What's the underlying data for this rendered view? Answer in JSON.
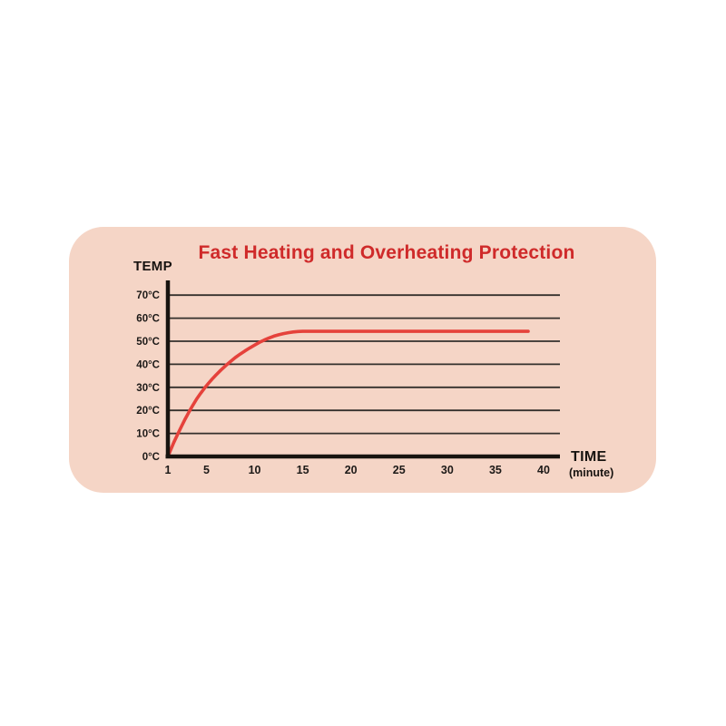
{
  "page": {
    "background": "#ffffff"
  },
  "colors": {
    "card_background": "#f5d5c6",
    "title": "#cf2a2a",
    "curve": "#e5423b",
    "axis": "#17130f",
    "grid": "#34302c",
    "tick_text": "#1c1917"
  },
  "card": {
    "title": "Fast Heating and Overheating Protection"
  },
  "chart_data": {
    "type": "line",
    "title": "Fast Heating and Overheating Protection",
    "x_axis_label": "TIME",
    "x_axis_unit": "(minute)",
    "y_axis_label": "TEMP",
    "x_tick_values": [
      1,
      5,
      10,
      15,
      20,
      25,
      30,
      35,
      40
    ],
    "x_tick_labels": [
      "1",
      "5",
      "10",
      "15",
      "20",
      "25",
      "30",
      "35",
      "40"
    ],
    "y_tick_values": [
      0,
      10,
      20,
      30,
      40,
      50,
      60,
      70
    ],
    "y_tick_labels": [
      "0°C",
      "10°C",
      "20°C",
      "30°C",
      "40°C",
      "50°C",
      "60°C",
      "70°C"
    ],
    "xlim": [
      1,
      42
    ],
    "ylim": [
      0,
      76
    ],
    "grid": "horizontal-only",
    "legend": "none",
    "series": [
      {
        "name": "Temperature",
        "color": "#e5423b",
        "plateau_temp_c": 54,
        "points": [
          [
            1,
            0
          ],
          [
            1.3,
            3
          ],
          [
            1.6,
            6
          ],
          [
            2,
            9.5
          ],
          [
            2.4,
            13
          ],
          [
            2.8,
            16.3
          ],
          [
            3.2,
            19.4
          ],
          [
            3.6,
            22.3
          ],
          [
            4,
            25
          ],
          [
            4.4,
            27.4
          ],
          [
            4.8,
            29.6
          ],
          [
            5.2,
            31.7
          ],
          [
            5.6,
            33.6
          ],
          [
            6,
            35.4
          ],
          [
            6.5,
            37.5
          ],
          [
            7,
            39.4
          ],
          [
            7.5,
            41.2
          ],
          [
            8,
            42.9
          ],
          [
            8.5,
            44.4
          ],
          [
            9,
            45.8
          ],
          [
            9.5,
            47.1
          ],
          [
            10,
            48.3
          ],
          [
            10.5,
            49.5
          ],
          [
            11,
            50.5
          ],
          [
            11.5,
            51.4
          ],
          [
            12,
            52.2
          ],
          [
            12.5,
            52.8
          ],
          [
            13,
            53.3
          ],
          [
            13.5,
            53.7
          ],
          [
            14,
            54
          ],
          [
            14.5,
            54.2
          ],
          [
            15,
            54.3
          ],
          [
            16,
            54.3
          ],
          [
            18,
            54.3
          ],
          [
            20,
            54.3
          ],
          [
            24,
            54.3
          ],
          [
            28,
            54.3
          ],
          [
            32,
            54.3
          ],
          [
            36,
            54.3
          ],
          [
            38.4,
            54.3
          ]
        ]
      }
    ]
  }
}
